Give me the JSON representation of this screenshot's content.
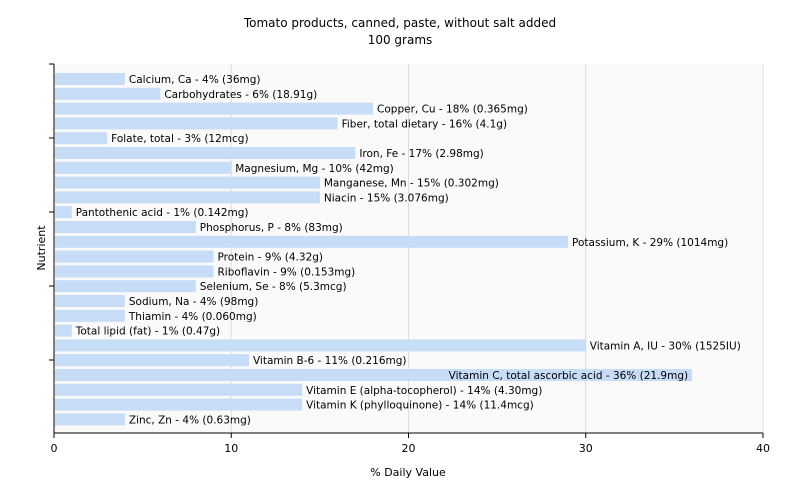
{
  "chart_data": {
    "type": "bar",
    "orientation": "horizontal",
    "title": "Tomato products, canned, paste, without salt added",
    "subtitle": "100 grams",
    "xlabel": "% Daily Value",
    "ylabel": "Nutrient",
    "xlim": [
      0,
      40
    ],
    "xticks": [
      0,
      10,
      20,
      30,
      40
    ],
    "grid": true,
    "bar_color": "#c6dcf7",
    "bars": [
      {
        "name": "Calcium, Ca",
        "value": 4,
        "label": "Calcium, Ca - 4% (36mg)"
      },
      {
        "name": "Carbohydrates",
        "value": 6,
        "label": "Carbohydrates - 6% (18.91g)"
      },
      {
        "name": "Copper, Cu",
        "value": 18,
        "label": "Copper, Cu - 18% (0.365mg)"
      },
      {
        "name": "Fiber, total dietary",
        "value": 16,
        "label": "Fiber, total dietary - 16% (4.1g)"
      },
      {
        "name": "Folate, total",
        "value": 3,
        "label": "Folate, total - 3% (12mcg)"
      },
      {
        "name": "Iron, Fe",
        "value": 17,
        "label": "Iron, Fe - 17% (2.98mg)"
      },
      {
        "name": "Magnesium, Mg",
        "value": 10,
        "label": "Magnesium, Mg - 10% (42mg)"
      },
      {
        "name": "Manganese, Mn",
        "value": 15,
        "label": "Manganese, Mn - 15% (0.302mg)"
      },
      {
        "name": "Niacin",
        "value": 15,
        "label": "Niacin - 15% (3.076mg)"
      },
      {
        "name": "Pantothenic acid",
        "value": 1,
        "label": "Pantothenic acid - 1% (0.142mg)"
      },
      {
        "name": "Phosphorus, P",
        "value": 8,
        "label": "Phosphorus, P - 8% (83mg)"
      },
      {
        "name": "Potassium, K",
        "value": 29,
        "label": "Potassium, K - 29% (1014mg)"
      },
      {
        "name": "Protein",
        "value": 9,
        "label": "Protein - 9% (4.32g)"
      },
      {
        "name": "Riboflavin",
        "value": 9,
        "label": "Riboflavin - 9% (0.153mg)"
      },
      {
        "name": "Selenium, Se",
        "value": 8,
        "label": "Selenium, Se - 8% (5.3mcg)"
      },
      {
        "name": "Sodium, Na",
        "value": 4,
        "label": "Sodium, Na - 4% (98mg)"
      },
      {
        "name": "Thiamin",
        "value": 4,
        "label": "Thiamin - 4% (0.060mg)"
      },
      {
        "name": "Total lipid (fat)",
        "value": 1,
        "label": "Total lipid (fat) - 1% (0.47g)"
      },
      {
        "name": "Vitamin A, IU",
        "value": 30,
        "label": "Vitamin A, IU - 30% (1525IU)"
      },
      {
        "name": "Vitamin B-6",
        "value": 11,
        "label": "Vitamin B-6 - 11% (0.216mg)"
      },
      {
        "name": "Vitamin C, total ascorbic acid",
        "value": 36,
        "label": "Vitamin C, total ascorbic acid - 36% (21.9mg)"
      },
      {
        "name": "Vitamin E (alpha-tocopherol)",
        "value": 14,
        "label": "Vitamin E (alpha-tocopherol) - 14% (4.30mg)"
      },
      {
        "name": "Vitamin K (phylloquinone)",
        "value": 14,
        "label": "Vitamin K (phylloquinone) - 14% (11.4mcg)"
      },
      {
        "name": "Zinc, Zn",
        "value": 4,
        "label": "Zinc, Zn - 4% (0.63mg)"
      }
    ]
  }
}
